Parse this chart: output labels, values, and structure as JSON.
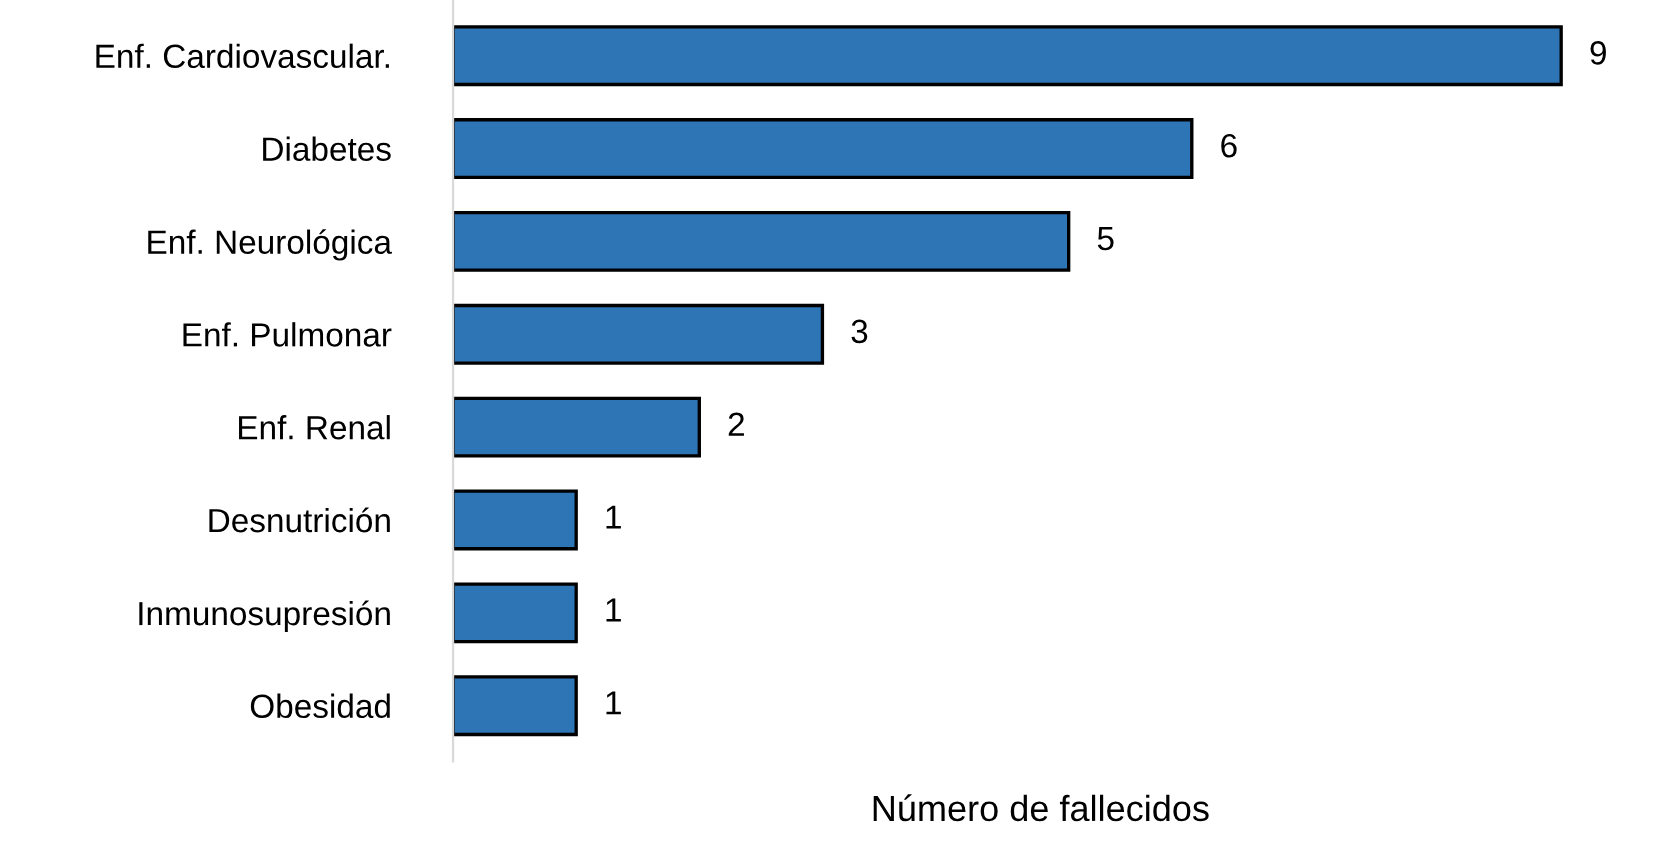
{
  "chart_data": {
    "type": "bar",
    "orientation": "horizontal",
    "xlabel": "Número de fallecidos",
    "categories": [
      "Enf. Cardiovascular.",
      "Diabetes",
      "Enf. Neurológica",
      "Enf. Pulmonar",
      "Enf. Renal",
      "Desnutrición",
      "Inmunosupresión",
      "Obesidad"
    ],
    "values": [
      9,
      6,
      5,
      3,
      2,
      1,
      1,
      1
    ],
    "color": "#2e75b6",
    "data_labels": true,
    "grid": false,
    "legend": false
  }
}
